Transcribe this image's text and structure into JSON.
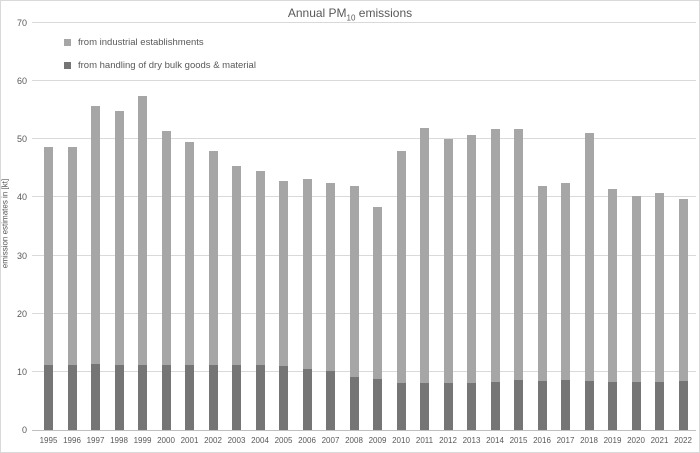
{
  "title": {
    "prefix": "Annual PM",
    "sub": "10",
    "suffix": " emissions",
    "full_text": "Annual PM10 emissions"
  },
  "y_axis": {
    "label": "emission estimates in [kt]",
    "ticks": [
      0,
      10,
      20,
      30,
      40,
      50,
      60,
      70
    ],
    "max": 70
  },
  "legend": {
    "items": [
      {
        "label": "from industrial establishments",
        "color": "#a6a6a6"
      },
      {
        "label": "from handling of dry bulk goods & material",
        "color": "#757575"
      }
    ]
  },
  "colors": {
    "industrial_bar": "#a6a6a6",
    "handling_bar": "#757575",
    "gridline": "#d9d9d9",
    "axis_line": "#bfbfbf",
    "text": "#595959",
    "border": "#d9d9d9",
    "background": "#ffffff"
  },
  "chart_data": {
    "type": "bar",
    "stacked": true,
    "title": "Annual PM10 emissions",
    "xlabel": "",
    "ylabel": "emission estimates in [kt]",
    "ylim": [
      0,
      70
    ],
    "grid": true,
    "legend_position": "top-left-inside",
    "categories": [
      "1995",
      "1996",
      "1997",
      "1998",
      "1999",
      "2000",
      "2001",
      "2002",
      "2003",
      "2004",
      "2005",
      "2006",
      "2007",
      "2008",
      "2009",
      "2010",
      "2011",
      "2012",
      "2013",
      "2014",
      "2015",
      "2016",
      "2017",
      "2018",
      "2019",
      "2020",
      "2021",
      "2022"
    ],
    "series": [
      {
        "name": "from handling of dry bulk goods & material",
        "color": "#757575",
        "values": [
          11.1,
          11.2,
          11.3,
          11.2,
          11.1,
          11.1,
          11.2,
          11.1,
          11.2,
          11.1,
          11.0,
          10.5,
          10.1,
          9.1,
          8.8,
          8.0,
          8.1,
          8.1,
          8.1,
          8.2,
          8.6,
          8.4,
          8.6,
          8.4,
          8.3,
          8.3,
          8.3,
          8.5
        ]
      },
      {
        "name": "from industrial establishments",
        "color": "#a6a6a6",
        "values": [
          37.6,
          37.5,
          44.4,
          43.7,
          46.3,
          40.4,
          38.4,
          36.8,
          34.2,
          33.5,
          31.9,
          32.7,
          32.4,
          32.8,
          29.5,
          39.9,
          43.9,
          41.9,
          42.7,
          43.5,
          43.1,
          33.6,
          33.8,
          42.7,
          33.2,
          32.0,
          32.4,
          31.2
        ]
      }
    ],
    "totals": [
      48.7,
      48.7,
      55.7,
      54.9,
      57.4,
      51.5,
      49.6,
      47.9,
      45.4,
      44.6,
      42.9,
      43.2,
      42.5,
      41.9,
      38.3,
      47.9,
      52.0,
      50.0,
      50.8,
      51.7,
      51.7,
      42.0,
      42.4,
      51.1,
      41.5,
      40.3,
      40.7,
      39.7
    ]
  }
}
